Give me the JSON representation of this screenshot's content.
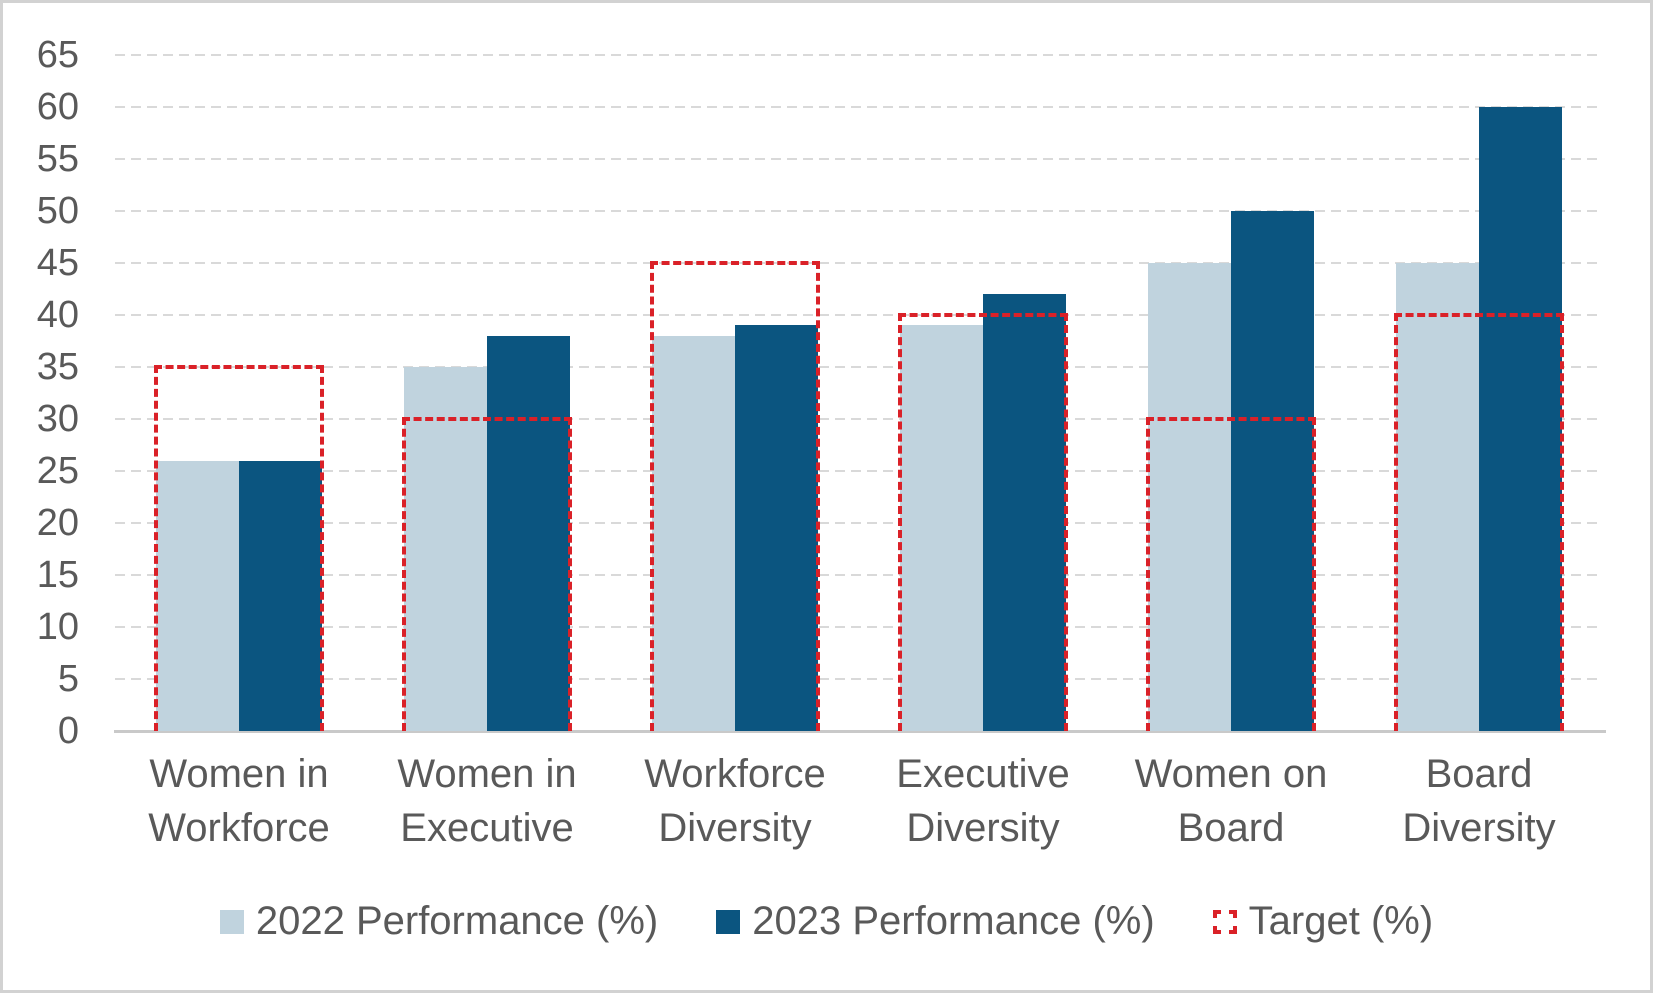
{
  "chart_data": {
    "type": "bar",
    "title": "",
    "categories": [
      {
        "line1": "Women in",
        "line2": "Workforce"
      },
      {
        "line1": "Women in",
        "line2": "Executive"
      },
      {
        "line1": "Workforce",
        "line2": "Diversity"
      },
      {
        "line1": "Executive",
        "line2": "Diversity"
      },
      {
        "line1": "Women on",
        "line2": "Board"
      },
      {
        "line1": "Board",
        "line2": "Diversity"
      }
    ],
    "series": [
      {
        "name": "2022 Performance (%)",
        "type": "bar",
        "color": "#c0d3de",
        "values": [
          26,
          35,
          38,
          39,
          45,
          45
        ]
      },
      {
        "name": "2023 Performance (%)",
        "type": "bar",
        "color": "#0b5580",
        "values": [
          26,
          38,
          39,
          42,
          50,
          60
        ]
      },
      {
        "name": "Target (%)",
        "type": "dashed-outline",
        "color": "#da2128",
        "values": [
          35,
          30,
          45,
          40,
          30,
          40
        ]
      }
    ],
    "xlabel": "",
    "ylabel": "",
    "ylim": [
      0,
      65
    ],
    "yticks": [
      0,
      5,
      10,
      15,
      20,
      25,
      30,
      35,
      40,
      45,
      50,
      55,
      60,
      65
    ],
    "grid": "dashed-horizontal",
    "legend_position": "bottom"
  },
  "colors": {
    "text": "#595959",
    "gridline": "#d9d9d9",
    "axis_line": "#c9c9c9",
    "frame_border": "#d2d2d2",
    "background": "#ffffff"
  }
}
